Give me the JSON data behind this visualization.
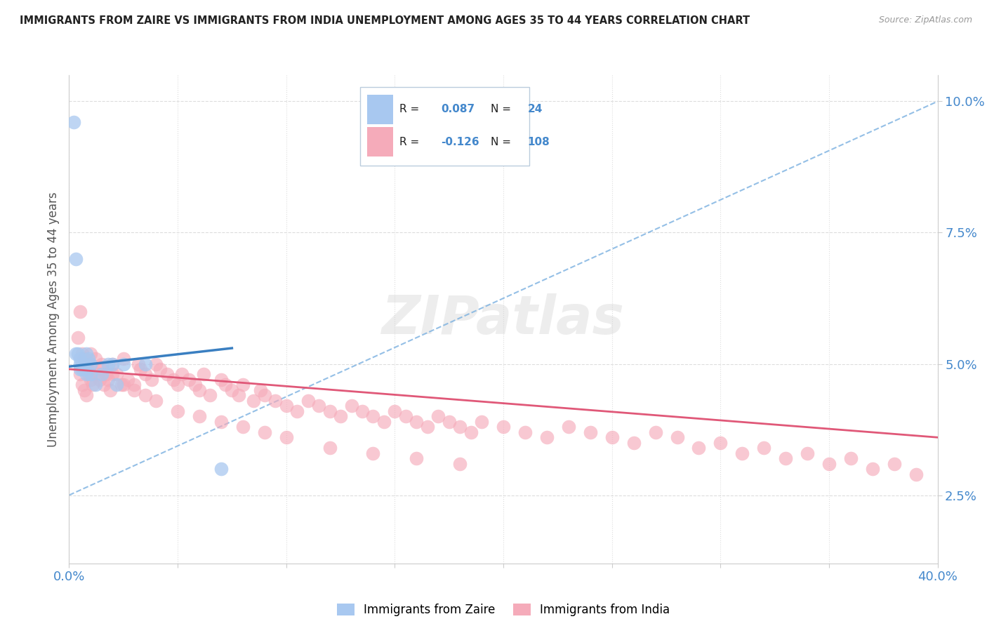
{
  "title": "IMMIGRANTS FROM ZAIRE VS IMMIGRANTS FROM INDIA UNEMPLOYMENT AMONG AGES 35 TO 44 YEARS CORRELATION CHART",
  "source": "Source: ZipAtlas.com",
  "ylabel": "Unemployment Among Ages 35 to 44 years",
  "xlim": [
    0.0,
    0.4
  ],
  "ylim": [
    0.012,
    0.105
  ],
  "R_zaire": 0.087,
  "N_zaire": 24,
  "R_india": -0.126,
  "N_india": 108,
  "color_zaire": "#A8C8F0",
  "color_india": "#F5ABBA",
  "color_line_zaire": "#3A7FC1",
  "color_line_india": "#E05878",
  "color_diag": "#7AB0E0",
  "zaire_x": [
    0.002,
    0.003,
    0.003,
    0.004,
    0.005,
    0.005,
    0.005,
    0.006,
    0.006,
    0.007,
    0.007,
    0.008,
    0.008,
    0.009,
    0.01,
    0.01,
    0.012,
    0.015,
    0.018,
    0.02,
    0.022,
    0.025,
    0.035,
    0.07
  ],
  "zaire_y": [
    0.096,
    0.07,
    0.052,
    0.052,
    0.051,
    0.05,
    0.049,
    0.05,
    0.049,
    0.05,
    0.049,
    0.052,
    0.048,
    0.051,
    0.05,
    0.048,
    0.046,
    0.048,
    0.05,
    0.05,
    0.046,
    0.05,
    0.05,
    0.03
  ],
  "india_x": [
    0.004,
    0.005,
    0.005,
    0.006,
    0.006,
    0.007,
    0.007,
    0.008,
    0.008,
    0.009,
    0.009,
    0.01,
    0.01,
    0.011,
    0.012,
    0.013,
    0.014,
    0.015,
    0.016,
    0.017,
    0.018,
    0.019,
    0.02,
    0.022,
    0.024,
    0.025,
    0.027,
    0.03,
    0.032,
    0.033,
    0.035,
    0.038,
    0.04,
    0.042,
    0.045,
    0.048,
    0.05,
    0.052,
    0.055,
    0.058,
    0.06,
    0.062,
    0.065,
    0.07,
    0.072,
    0.075,
    0.078,
    0.08,
    0.085,
    0.088,
    0.09,
    0.095,
    0.1,
    0.105,
    0.11,
    0.115,
    0.12,
    0.125,
    0.13,
    0.135,
    0.14,
    0.145,
    0.15,
    0.155,
    0.16,
    0.165,
    0.17,
    0.175,
    0.18,
    0.185,
    0.19,
    0.2,
    0.21,
    0.22,
    0.23,
    0.24,
    0.25,
    0.26,
    0.27,
    0.28,
    0.29,
    0.3,
    0.31,
    0.32,
    0.33,
    0.34,
    0.35,
    0.36,
    0.37,
    0.38,
    0.39,
    0.01,
    0.015,
    0.02,
    0.025,
    0.03,
    0.035,
    0.04,
    0.05,
    0.06,
    0.07,
    0.08,
    0.09,
    0.1,
    0.12,
    0.14,
    0.16,
    0.18
  ],
  "india_y": [
    0.055,
    0.06,
    0.048,
    0.052,
    0.046,
    0.051,
    0.045,
    0.05,
    0.044,
    0.049,
    0.048,
    0.052,
    0.047,
    0.046,
    0.051,
    0.048,
    0.047,
    0.05,
    0.046,
    0.048,
    0.047,
    0.045,
    0.05,
    0.048,
    0.046,
    0.051,
    0.047,
    0.046,
    0.05,
    0.049,
    0.048,
    0.047,
    0.05,
    0.049,
    0.048,
    0.047,
    0.046,
    0.048,
    0.047,
    0.046,
    0.045,
    0.048,
    0.044,
    0.047,
    0.046,
    0.045,
    0.044,
    0.046,
    0.043,
    0.045,
    0.044,
    0.043,
    0.042,
    0.041,
    0.043,
    0.042,
    0.041,
    0.04,
    0.042,
    0.041,
    0.04,
    0.039,
    0.041,
    0.04,
    0.039,
    0.038,
    0.04,
    0.039,
    0.038,
    0.037,
    0.039,
    0.038,
    0.037,
    0.036,
    0.038,
    0.037,
    0.036,
    0.035,
    0.037,
    0.036,
    0.034,
    0.035,
    0.033,
    0.034,
    0.032,
    0.033,
    0.031,
    0.032,
    0.03,
    0.031,
    0.029,
    0.05,
    0.049,
    0.048,
    0.046,
    0.045,
    0.044,
    0.043,
    0.041,
    0.04,
    0.039,
    0.038,
    0.037,
    0.036,
    0.034,
    0.033,
    0.032,
    0.031
  ]
}
